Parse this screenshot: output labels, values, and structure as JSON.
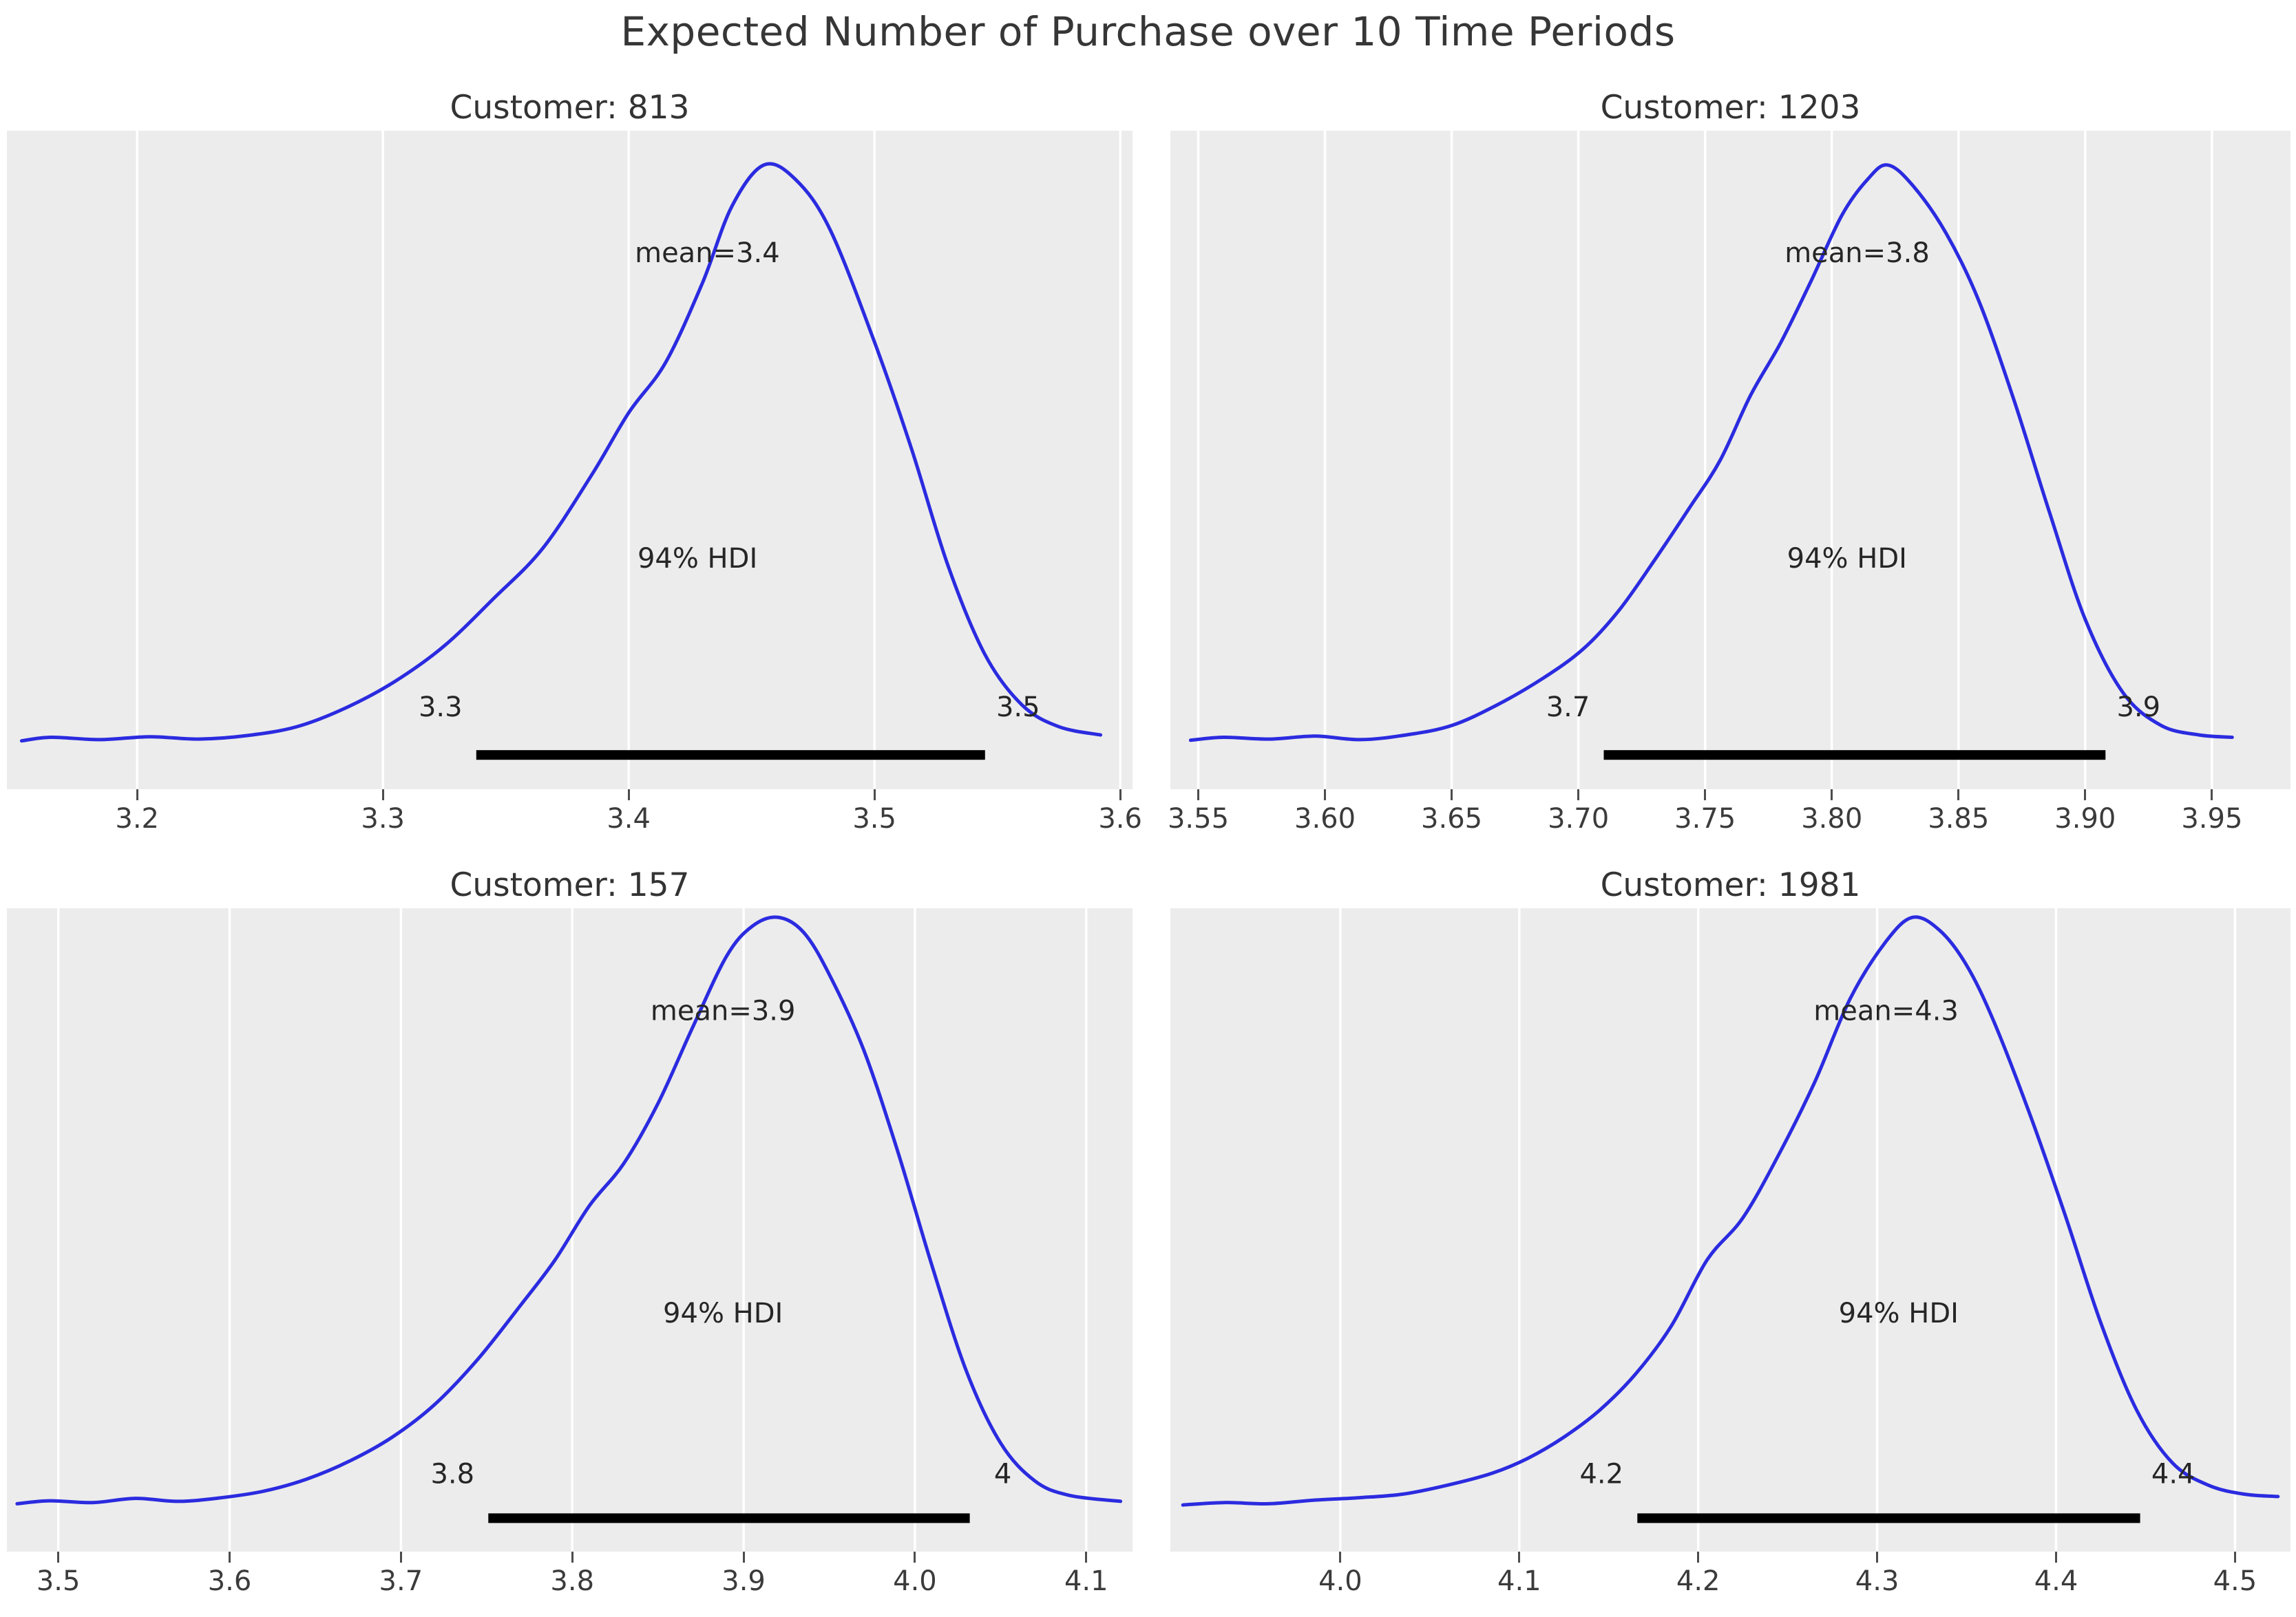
{
  "figure": {
    "title": "Expected Number of Purchase over 10 Time Periods"
  },
  "style": {
    "curve_color": "#2b2be0",
    "panel_bg": "#ececec",
    "grid_color": "#ffffff",
    "hdi_bar_color": "#000000",
    "annotation_color": "#262626",
    "tick_color": "#3b3b3b",
    "title_color": "#333333"
  },
  "chart_data": [
    {
      "type": "line",
      "kind": "kde-posterior",
      "title": "Customer: 813",
      "mean": 3.4,
      "mean_label": "mean=3.4",
      "hdi_text": "94% HDI",
      "hdi_prob": 0.94,
      "hdi_lower_label": "3.3",
      "hdi_upper_label": "3.5",
      "hdi_interval": [
        3.338,
        3.545
      ],
      "xlim": [
        3.147,
        3.605
      ],
      "xticks": [
        3.2,
        3.3,
        3.4,
        3.5,
        3.6
      ],
      "xtick_labels": [
        "3.2",
        "3.3",
        "3.4",
        "3.5",
        "3.6"
      ],
      "grid": true,
      "legend": false,
      "annotations": {
        "mean_x": 3.432,
        "hdi_text_x": 3.428
      },
      "curve": {
        "x": [
          3.153,
          3.165,
          3.185,
          3.205,
          3.225,
          3.245,
          3.265,
          3.285,
          3.305,
          3.325,
          3.345,
          3.365,
          3.385,
          3.4,
          3.415,
          3.43,
          3.442,
          3.455,
          3.468,
          3.482,
          3.5,
          3.515,
          3.53,
          3.545,
          3.56,
          3.575,
          3.592
        ],
        "y": [
          0.024,
          0.03,
          0.026,
          0.031,
          0.027,
          0.033,
          0.048,
          0.08,
          0.125,
          0.185,
          0.265,
          0.35,
          0.475,
          0.58,
          0.665,
          0.8,
          0.93,
          1.0,
          0.975,
          0.89,
          0.7,
          0.52,
          0.32,
          0.17,
          0.085,
          0.048,
          0.034
        ]
      }
    },
    {
      "type": "line",
      "kind": "kde-posterior",
      "title": "Customer: 1203",
      "mean": 3.8,
      "mean_label": "mean=3.8",
      "hdi_text": "94% HDI",
      "hdi_prob": 0.94,
      "hdi_lower_label": "3.7",
      "hdi_upper_label": "3.9",
      "hdi_interval": [
        3.71,
        3.908
      ],
      "xlim": [
        3.539,
        3.981
      ],
      "xticks": [
        3.55,
        3.6,
        3.65,
        3.7,
        3.75,
        3.8,
        3.85,
        3.9,
        3.95
      ],
      "xtick_labels": [
        "3.55",
        "3.60",
        "3.65",
        "3.70",
        "3.75",
        "3.80",
        "3.85",
        "3.90",
        "3.95"
      ],
      "grid": true,
      "legend": false,
      "annotations": {
        "mean_x": 3.81,
        "hdi_text_x": 3.806
      },
      "curve": {
        "x": [
          3.547,
          3.56,
          3.578,
          3.596,
          3.614,
          3.632,
          3.65,
          3.668,
          3.686,
          3.702,
          3.716,
          3.73,
          3.744,
          3.756,
          3.768,
          3.78,
          3.792,
          3.804,
          3.814,
          3.822,
          3.832,
          3.845,
          3.858,
          3.872,
          3.886,
          3.9,
          3.915,
          3.93,
          3.945,
          3.958
        ],
        "y": [
          0.025,
          0.03,
          0.027,
          0.032,
          0.026,
          0.034,
          0.05,
          0.085,
          0.13,
          0.18,
          0.245,
          0.33,
          0.42,
          0.5,
          0.61,
          0.7,
          0.805,
          0.915,
          0.975,
          1.0,
          0.965,
          0.885,
          0.77,
          0.6,
          0.41,
          0.23,
          0.105,
          0.05,
          0.034,
          0.03
        ]
      }
    },
    {
      "type": "line",
      "kind": "kde-posterior",
      "title": "Customer: 157",
      "mean": 3.9,
      "mean_label": "mean=3.9",
      "hdi_text": "94% HDI",
      "hdi_prob": 0.94,
      "hdi_lower_label": "3.8",
      "hdi_upper_label": "4",
      "hdi_interval": [
        3.751,
        4.032
      ],
      "xlim": [
        3.47,
        4.127
      ],
      "xticks": [
        3.5,
        3.6,
        3.7,
        3.8,
        3.9,
        4.0,
        4.1
      ],
      "xtick_labels": [
        "3.5",
        "3.6",
        "3.7",
        "3.8",
        "3.9",
        "4.0",
        "4.1"
      ],
      "grid": true,
      "legend": false,
      "annotations": {
        "mean_x": 3.888,
        "hdi_text_x": 3.888
      },
      "curve": {
        "x": [
          3.476,
          3.495,
          3.52,
          3.545,
          3.57,
          3.595,
          3.62,
          3.645,
          3.67,
          3.695,
          3.72,
          3.745,
          3.77,
          3.79,
          3.81,
          3.83,
          3.85,
          3.87,
          3.89,
          3.905,
          3.92,
          3.935,
          3.95,
          3.97,
          3.99,
          4.01,
          4.03,
          4.05,
          4.07,
          4.09,
          4.12
        ],
        "y": [
          0.024,
          0.029,
          0.026,
          0.033,
          0.028,
          0.034,
          0.045,
          0.065,
          0.095,
          0.135,
          0.19,
          0.265,
          0.355,
          0.43,
          0.52,
          0.59,
          0.69,
          0.815,
          0.935,
          0.985,
          1.0,
          0.975,
          0.905,
          0.78,
          0.61,
          0.42,
          0.245,
          0.125,
          0.062,
          0.038,
          0.028
        ]
      }
    },
    {
      "type": "line",
      "kind": "kde-posterior",
      "title": "Customer: 1981",
      "mean": 4.3,
      "mean_label": "mean=4.3",
      "hdi_text": "94% HDI",
      "hdi_prob": 0.94,
      "hdi_lower_label": "4.2",
      "hdi_upper_label": "4.4",
      "hdi_interval": [
        4.166,
        4.447
      ],
      "xlim": [
        3.905,
        4.531
      ],
      "xticks": [
        4.0,
        4.1,
        4.2,
        4.3,
        4.4,
        4.5
      ],
      "xtick_labels": [
        "4.0",
        "4.1",
        "4.2",
        "4.3",
        "4.4",
        "4.5"
      ],
      "grid": true,
      "legend": false,
      "annotations": {
        "mean_x": 4.305,
        "hdi_text_x": 4.312
      },
      "curve": {
        "x": [
          3.912,
          3.935,
          3.96,
          3.985,
          4.01,
          4.035,
          4.06,
          4.085,
          4.105,
          4.125,
          4.145,
          4.165,
          4.185,
          4.205,
          4.225,
          4.245,
          4.265,
          4.285,
          4.305,
          4.32,
          4.335,
          4.35,
          4.365,
          4.385,
          4.405,
          4.425,
          4.445,
          4.465,
          4.485,
          4.505,
          4.524
        ],
        "y": [
          0.022,
          0.026,
          0.024,
          0.03,
          0.034,
          0.04,
          0.055,
          0.075,
          0.1,
          0.135,
          0.18,
          0.24,
          0.32,
          0.43,
          0.5,
          0.605,
          0.725,
          0.865,
          0.96,
          1.0,
          0.978,
          0.92,
          0.828,
          0.675,
          0.505,
          0.325,
          0.18,
          0.092,
          0.055,
          0.04,
          0.036
        ]
      }
    }
  ]
}
